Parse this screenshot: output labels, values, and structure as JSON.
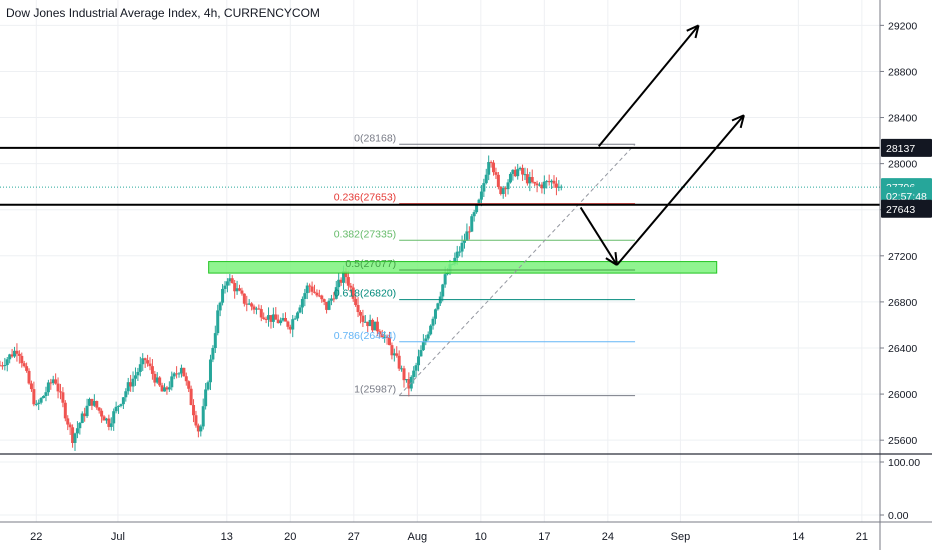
{
  "header": {
    "title": "Dow Jones Industrial Average Index, 4h, CURRENCYCOM"
  },
  "colors": {
    "up": "#26a69a",
    "down": "#ef5350",
    "grid": "#eef0f3",
    "axis": "#787b86",
    "hline": "#000000",
    "zone_fill": "#7cf27c",
    "zone_stroke": "#22c422",
    "last_price": "#26a69a"
  },
  "price_axis": {
    "ticks": [
      "29200",
      "28800",
      "28400",
      "28000",
      "27600",
      "27200",
      "26800",
      "26400",
      "26000",
      "25600"
    ],
    "badges": [
      {
        "label": "28137",
        "price": 28137,
        "bg": "#131722",
        "fg": "#ffffff"
      },
      {
        "label": "27796",
        "price": 27796,
        "bg": "#26a69a",
        "fg": "#ffffff"
      },
      {
        "label": "02:57:48",
        "price": 27720,
        "bg": "#26a69a",
        "fg": "#ffffff"
      },
      {
        "label": "27643",
        "price": 27643,
        "bg": "#131722",
        "fg": "#ffffff"
      }
    ]
  },
  "volume_axis": {
    "ticks": [
      "100.00",
      "0.00"
    ]
  },
  "time_axis": {
    "ticks": [
      "22",
      "Jul",
      "13",
      "20",
      "27",
      "Aug",
      "10",
      "17",
      "24",
      "Sep",
      "14",
      "21"
    ]
  },
  "fib_levels": [
    {
      "label": "0(28168)",
      "price": 28168,
      "color": "#787b86"
    },
    {
      "label": "0.236(27653)",
      "price": 27653,
      "color": "#e53935"
    },
    {
      "label": "0.382(27335)",
      "price": 27335,
      "color": "#66bb6a"
    },
    {
      "label": "0.5(27077)",
      "price": 27077,
      "color": "#43a047"
    },
    {
      "label": "0.618(26820)",
      "price": 26820,
      "color": "#00897b"
    },
    {
      "label": "0.786(26454)",
      "price": 26454,
      "color": "#64b5f6"
    },
    {
      "label": "1(25987)",
      "price": 25987,
      "color": "#787b86"
    }
  ],
  "horizontal_lines": [
    28137,
    27643
  ],
  "support_zone": {
    "from": 27050,
    "to": 27150
  },
  "chart_data": {
    "type": "candlestick",
    "x_range": [
      "2020-06-18",
      "2020-09-23"
    ],
    "y_range": [
      25480,
      29420
    ],
    "last_price": 27796,
    "candle_path": [
      [
        "2020-06-18",
        26250
      ],
      [
        "2020-06-20",
        26400
      ],
      [
        "2020-06-22",
        25880
      ],
      [
        "2020-06-24",
        26150
      ],
      [
        "2020-06-26",
        25620
      ],
      [
        "2020-06-28",
        25950
      ],
      [
        "2020-06-30",
        25750
      ],
      [
        "2020-07-02",
        26050
      ],
      [
        "2020-07-04",
        26300
      ],
      [
        "2020-07-06",
        26000
      ],
      [
        "2020-07-08",
        26250
      ],
      [
        "2020-07-10",
        25650
      ],
      [
        "2020-07-12",
        26700
      ],
      [
        "2020-07-13",
        27020
      ],
      [
        "2020-07-15",
        26800
      ],
      [
        "2020-07-18",
        26650
      ],
      [
        "2020-07-20",
        26600
      ],
      [
        "2020-07-22",
        26950
      ],
      [
        "2020-07-24",
        26750
      ],
      [
        "2020-07-26",
        27050
      ],
      [
        "2020-07-28",
        26650
      ],
      [
        "2020-07-30",
        26550
      ],
      [
        "2020-08-01",
        26250
      ],
      [
        "2020-08-02",
        26050
      ],
      [
        "2020-08-04",
        26500
      ],
      [
        "2020-08-06",
        27000
      ],
      [
        "2020-08-08",
        27300
      ],
      [
        "2020-08-10",
        27700
      ],
      [
        "2020-08-11",
        28100
      ],
      [
        "2020-08-12",
        27750
      ],
      [
        "2020-08-14",
        27950
      ],
      [
        "2020-08-16",
        27800
      ],
      [
        "2020-08-18",
        27850
      ],
      [
        "2020-08-19",
        27780
      ]
    ],
    "projections": [
      {
        "from": [
          "2020-08-23",
          28150
        ],
        "to": [
          "2020-09-03",
          29200
        ]
      },
      {
        "from": [
          "2020-08-21",
          27620
        ],
        "to": [
          "2020-08-25",
          27120
        ]
      },
      {
        "from": [
          "2020-08-25",
          27120
        ],
        "to": [
          "2020-09-08",
          28420
        ]
      }
    ],
    "trend_line": {
      "from": [
        "2020-08-01",
        25987
      ],
      "to": [
        "2020-08-27",
        28168
      ]
    }
  }
}
